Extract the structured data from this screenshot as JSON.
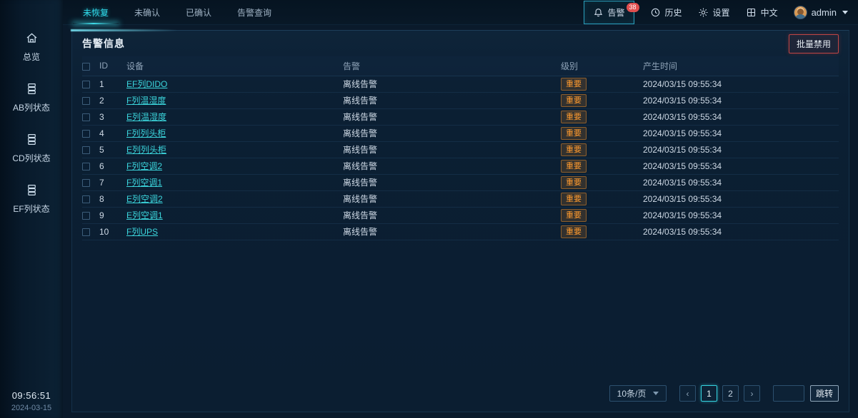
{
  "sidebar": {
    "items": [
      {
        "label": "总览",
        "icon": "home-icon"
      },
      {
        "label": "AB列状态",
        "icon": "rack-icon"
      },
      {
        "label": "CD列状态",
        "icon": "rack-icon"
      },
      {
        "label": "EF列状态",
        "icon": "rack-icon"
      }
    ],
    "clock": {
      "time": "09:56:51",
      "date": "2024-03-15"
    }
  },
  "topbar": {
    "tabs": [
      {
        "label": "未恢复",
        "active": true
      },
      {
        "label": "未确认",
        "active": false
      },
      {
        "label": "已确认",
        "active": false
      },
      {
        "label": "告警查询",
        "active": false
      }
    ],
    "actions": {
      "alarm": {
        "label": "告警",
        "badge": "38"
      },
      "history": {
        "label": "历史"
      },
      "settings": {
        "label": "设置"
      },
      "language": {
        "label": "中文"
      },
      "user": {
        "name": "admin"
      }
    }
  },
  "panel": {
    "title": "告警信息",
    "batch_disable_label": "批量禁用",
    "table": {
      "columns": [
        "ID",
        "设备",
        "告警",
        "级别",
        "产生时间"
      ],
      "rows": [
        {
          "id": "1",
          "device": "EF列DIDO",
          "alarm": "离线告警",
          "level": "重要",
          "time": "2024/03/15 09:55:34"
        },
        {
          "id": "2",
          "device": "F列温湿度",
          "alarm": "离线告警",
          "level": "重要",
          "time": "2024/03/15 09:55:34"
        },
        {
          "id": "3",
          "device": "E列温湿度",
          "alarm": "离线告警",
          "level": "重要",
          "time": "2024/03/15 09:55:34"
        },
        {
          "id": "4",
          "device": "F列列头柜",
          "alarm": "离线告警",
          "level": "重要",
          "time": "2024/03/15 09:55:34"
        },
        {
          "id": "5",
          "device": "E列列头柜",
          "alarm": "离线告警",
          "level": "重要",
          "time": "2024/03/15 09:55:34"
        },
        {
          "id": "6",
          "device": "F列空调2",
          "alarm": "离线告警",
          "level": "重要",
          "time": "2024/03/15 09:55:34"
        },
        {
          "id": "7",
          "device": "F列空调1",
          "alarm": "离线告警",
          "level": "重要",
          "time": "2024/03/15 09:55:34"
        },
        {
          "id": "8",
          "device": "E列空调2",
          "alarm": "离线告警",
          "level": "重要",
          "time": "2024/03/15 09:55:34"
        },
        {
          "id": "9",
          "device": "E列空调1",
          "alarm": "离线告警",
          "level": "重要",
          "time": "2024/03/15 09:55:34"
        },
        {
          "id": "10",
          "device": "F列UPS",
          "alarm": "离线告警",
          "level": "重要",
          "time": "2024/03/15 09:55:34"
        }
      ]
    },
    "pagination": {
      "page_size": "10条/页",
      "pages": [
        "1",
        "2"
      ],
      "active_page": "1",
      "jump_label": "跳转"
    }
  },
  "colors": {
    "accent_cyan": "#2fd8e8",
    "link_cyan": "#3bd4db",
    "level_orange": "#ff9b2f",
    "badge_red": "#e04f4f",
    "batch_border_red": "#c04545",
    "background": "#0a1a2b"
  }
}
